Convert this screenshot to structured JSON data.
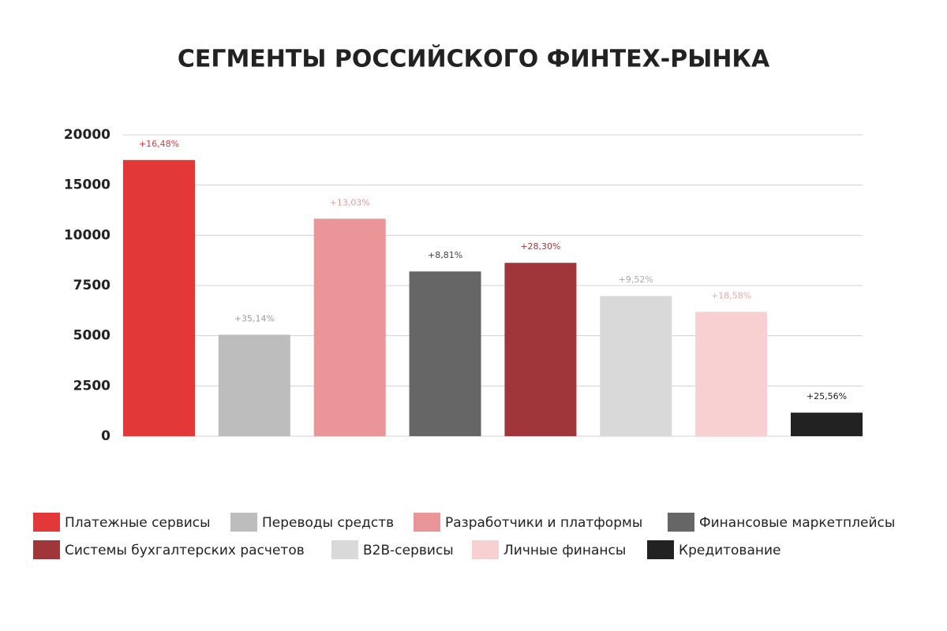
{
  "chart_data": {
    "type": "bar",
    "title": "СЕГМЕНТЫ РОССИЙСКОГО ФИНТЕХ-РЫНКА",
    "categories": [
      "Платежные сервисы",
      "Переводы средств",
      "Разработчики и платформы",
      "Финансовые маркетплейсы",
      "Системы бухгалтерских расчетов",
      "B2B-сервисы",
      "Личные финансы",
      "Кредитование"
    ],
    "values": [
      17500,
      5050,
      11650,
      8200,
      8630,
      6980,
      6190,
      1170
    ],
    "annotations": [
      "+16,48%",
      "+35,14%",
      "+13,03%",
      "+8,81%",
      "+28,30%",
      "+9,52%",
      "+18,58%",
      "+25,56%"
    ],
    "colors": [
      "#e23838",
      "#bdbdbd",
      "#ea9597",
      "#666666",
      "#a0353a",
      "#d9d9d9",
      "#f9d0d2",
      "#222222"
    ],
    "annotation_colors": [
      "#e23838",
      "#9a9a9a",
      "#ea9597",
      "#444444",
      "#a0353a",
      "#aaaaaa",
      "#f0a8ac",
      "#222222"
    ],
    "ylim": [
      0,
      20000
    ],
    "yticks": [
      0,
      2500,
      5000,
      7500,
      10000,
      15000,
      20000
    ],
    "grid": true
  }
}
